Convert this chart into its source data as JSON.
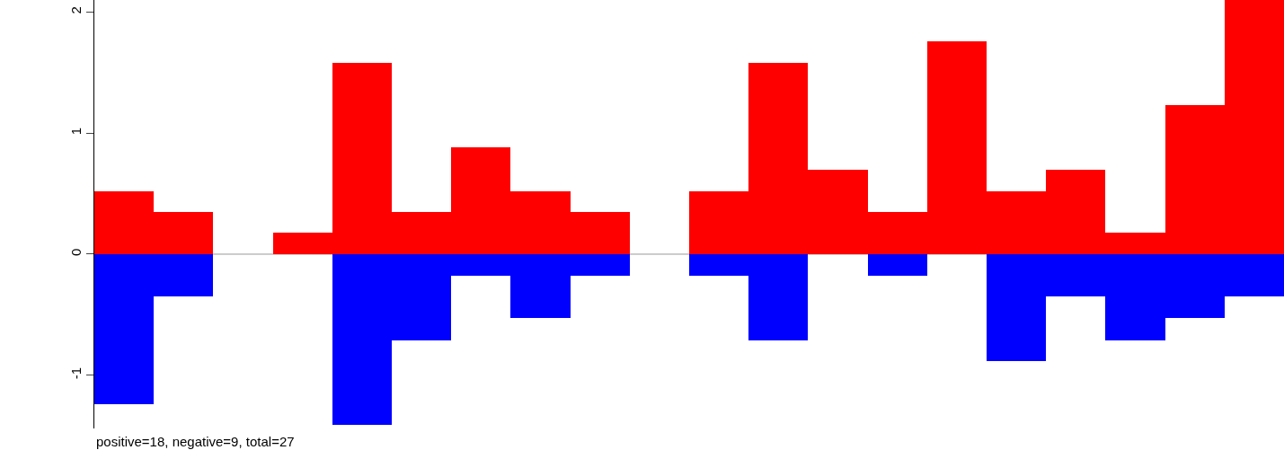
{
  "chart_data": {
    "type": "bar",
    "stacked": true,
    "categories": [
      null,
      null,
      null,
      null,
      null,
      null,
      null,
      null,
      null,
      null,
      null,
      null,
      null,
      null,
      null,
      null,
      null,
      null,
      null,
      null
    ],
    "series": [
      {
        "color": "#ff0000",
        "values": [
          0.52,
          0.35,
          0,
          0.18,
          1.58,
          0.35,
          0.88,
          0.52,
          0.35,
          0,
          0.52,
          1.58,
          0.7,
          0.35,
          1.76,
          0.52,
          0.7,
          0.18,
          1.23,
          2.1
        ]
      },
      {
        "color": "#0000ff",
        "values": [
          -1.24,
          -0.35,
          0,
          0,
          -1.41,
          -0.71,
          -0.18,
          -0.53,
          -0.18,
          0,
          -0.18,
          -0.71,
          0,
          -0.18,
          0,
          -0.88,
          -0.35,
          -0.71,
          -0.53,
          -0.35
        ]
      }
    ],
    "ylim": [
      -1.44,
      2.1
    ],
    "yticks": [
      -1,
      0,
      1,
      2
    ],
    "tick_labels": "y",
    "grid": false,
    "ref_lines": [
      {
        "axis": "y",
        "value": 0,
        "color": "#999999"
      }
    ],
    "annotations": [
      "positive=18, negative=9, total=27"
    ]
  }
}
